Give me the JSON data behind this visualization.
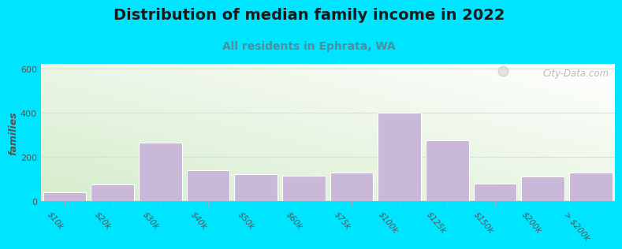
{
  "title": "Distribution of median family income in 2022",
  "subtitle": "All residents in Ephrata, WA",
  "categories": [
    "$10k",
    "$20k",
    "$30k",
    "$40k",
    "$50k",
    "$60k",
    "$75k",
    "$100k",
    "$125k",
    "$150k",
    "$200k",
    "> $200k"
  ],
  "values": [
    40,
    75,
    265,
    140,
    120,
    115,
    130,
    400,
    275,
    80,
    110,
    130
  ],
  "bar_color": "#c9b8d8",
  "bar_edgecolor": "#ffffff",
  "ylabel": "families",
  "ylim": [
    0,
    620
  ],
  "yticks": [
    0,
    200,
    400,
    600
  ],
  "background_outer": "#00e5ff",
  "plot_bg_top_left": "#d6edcc",
  "plot_bg_bottom_right": "#ffffff",
  "grid_color": "#dddddd",
  "title_fontsize": 14,
  "subtitle_fontsize": 10,
  "title_color": "#1a1a1a",
  "subtitle_color": "#4a8fa0",
  "ylabel_color": "#555555",
  "tick_color": "#555555",
  "watermark_text": "City-Data.com",
  "watermark_color": "#aaaaaa"
}
